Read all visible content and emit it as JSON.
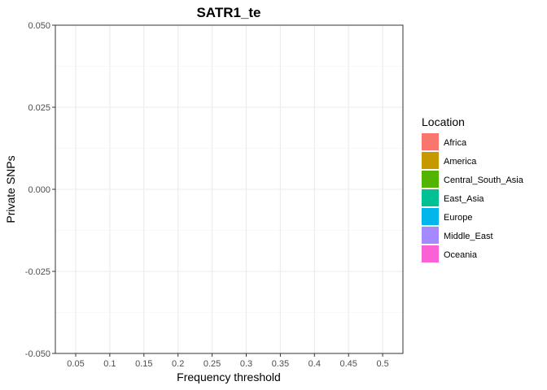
{
  "chart_data": {
    "type": "bar",
    "title": "SATR1_te",
    "xlabel": "Frequency threshold",
    "ylabel": "Private SNPs",
    "categories": [
      "0.05",
      "0.1",
      "0.15",
      "0.2",
      "0.25",
      "0.3",
      "0.35",
      "0.4",
      "0.45",
      "0.5"
    ],
    "y_ticks": [
      "0.050",
      "0.025",
      "0.000",
      "-0.025",
      "-0.050"
    ],
    "y_tick_values": [
      0.05,
      0.025,
      0,
      -0.025,
      -0.05
    ],
    "ylim": [
      -0.05,
      0.05
    ],
    "series": [],
    "grid": true,
    "legend": {
      "title": "Location",
      "position": "right",
      "entries": [
        {
          "label": "Africa",
          "color": "#F8766D"
        },
        {
          "label": "America",
          "color": "#C49A00"
        },
        {
          "label": "Central_South_Asia",
          "color": "#53B400"
        },
        {
          "label": "East_Asia",
          "color": "#00C094"
        },
        {
          "label": "Europe",
          "color": "#00B6EB"
        },
        {
          "label": "Middle_East",
          "color": "#A58AFF"
        },
        {
          "label": "Oceania",
          "color": "#FB61D7"
        }
      ]
    }
  }
}
